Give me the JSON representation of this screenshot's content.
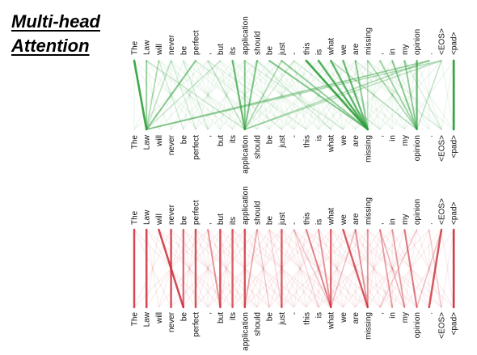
{
  "title": {
    "line1": "Multi-head",
    "line2": "Attention"
  },
  "tokens": [
    "The",
    "Law",
    "will",
    "never",
    "be",
    "perfect",
    ",",
    "but",
    "its",
    "application",
    "should",
    "be",
    "just",
    "-",
    "this",
    "is",
    "what",
    "we",
    "are",
    "missing",
    ",",
    "in",
    "my",
    "opinion",
    ".",
    "<EOS>",
    "<pad>"
  ],
  "colors": {
    "green": "#2e9e3a",
    "red": "#cc2a35"
  },
  "panels": [
    {
      "id": "top",
      "color": "green",
      "links": [
        [
          0,
          1,
          0.9
        ],
        [
          1,
          1,
          0.5
        ],
        [
          2,
          1,
          0.35
        ],
        [
          3,
          1,
          0.3
        ],
        [
          5,
          1,
          0.55
        ],
        [
          7,
          1,
          0.25
        ],
        [
          8,
          9,
          0.7
        ],
        [
          9,
          9,
          0.55
        ],
        [
          10,
          9,
          0.6
        ],
        [
          12,
          9,
          0.35
        ],
        [
          13,
          9,
          0.2
        ],
        [
          6,
          9,
          0.25
        ],
        [
          11,
          19,
          0.55
        ],
        [
          12,
          19,
          0.5
        ],
        [
          14,
          19,
          0.9
        ],
        [
          15,
          19,
          0.8
        ],
        [
          16,
          19,
          0.75
        ],
        [
          17,
          19,
          0.7
        ],
        [
          18,
          19,
          0.55
        ],
        [
          19,
          19,
          0.3
        ],
        [
          20,
          23,
          0.45
        ],
        [
          21,
          23,
          0.55
        ],
        [
          22,
          23,
          0.5
        ],
        [
          23,
          23,
          0.7
        ],
        [
          19,
          23,
          0.35
        ],
        [
          16,
          23,
          0.3
        ],
        [
          24,
          1,
          0.45
        ],
        [
          25,
          1,
          0.35
        ],
        [
          24,
          9,
          0.35
        ],
        [
          25,
          9,
          0.3
        ],
        [
          26,
          26,
          0.95
        ],
        [
          25,
          23,
          0.25
        ],
        [
          3,
          5,
          0.2
        ],
        [
          4,
          6,
          0.2
        ],
        [
          2,
          4,
          0.15
        ],
        [
          9,
          17,
          0.2
        ],
        [
          6,
          14,
          0.15
        ],
        [
          10,
          16,
          0.2
        ],
        [
          1,
          9,
          0.25
        ],
        [
          5,
          12,
          0.15
        ],
        [
          13,
          20,
          0.15
        ],
        [
          18,
          25,
          0.15
        ],
        [
          22,
          25,
          0.2
        ]
      ]
    },
    {
      "id": "bottom",
      "color": "red",
      "links": [
        [
          0,
          0,
          0.85
        ],
        [
          1,
          1,
          0.85
        ],
        [
          2,
          4,
          0.85
        ],
        [
          3,
          3,
          0.8
        ],
        [
          4,
          4,
          0.7
        ],
        [
          5,
          5,
          0.8
        ],
        [
          6,
          7,
          0.5
        ],
        [
          7,
          7,
          0.8
        ],
        [
          8,
          8,
          0.75
        ],
        [
          9,
          9,
          0.8
        ],
        [
          10,
          9,
          0.4
        ],
        [
          11,
          12,
          0.2
        ],
        [
          12,
          12,
          0.75
        ],
        [
          13,
          15,
          0.2
        ],
        [
          14,
          16,
          0.55
        ],
        [
          15,
          16,
          0.5
        ],
        [
          16,
          16,
          0.7
        ],
        [
          18,
          16,
          0.3
        ],
        [
          13,
          16,
          0.25
        ],
        [
          17,
          19,
          0.75
        ],
        [
          18,
          19,
          0.5
        ],
        [
          19,
          19,
          0.5
        ],
        [
          20,
          21,
          0.45
        ],
        [
          21,
          22,
          0.45
        ],
        [
          22,
          23,
          0.6
        ],
        [
          23,
          20,
          0.25
        ],
        [
          20,
          22,
          0.3
        ],
        [
          24,
          25,
          0.25
        ],
        [
          25,
          24,
          0.8
        ],
        [
          26,
          26,
          0.9
        ],
        [
          25,
          23,
          0.25
        ],
        [
          10,
          11,
          0.2
        ]
      ]
    }
  ]
}
